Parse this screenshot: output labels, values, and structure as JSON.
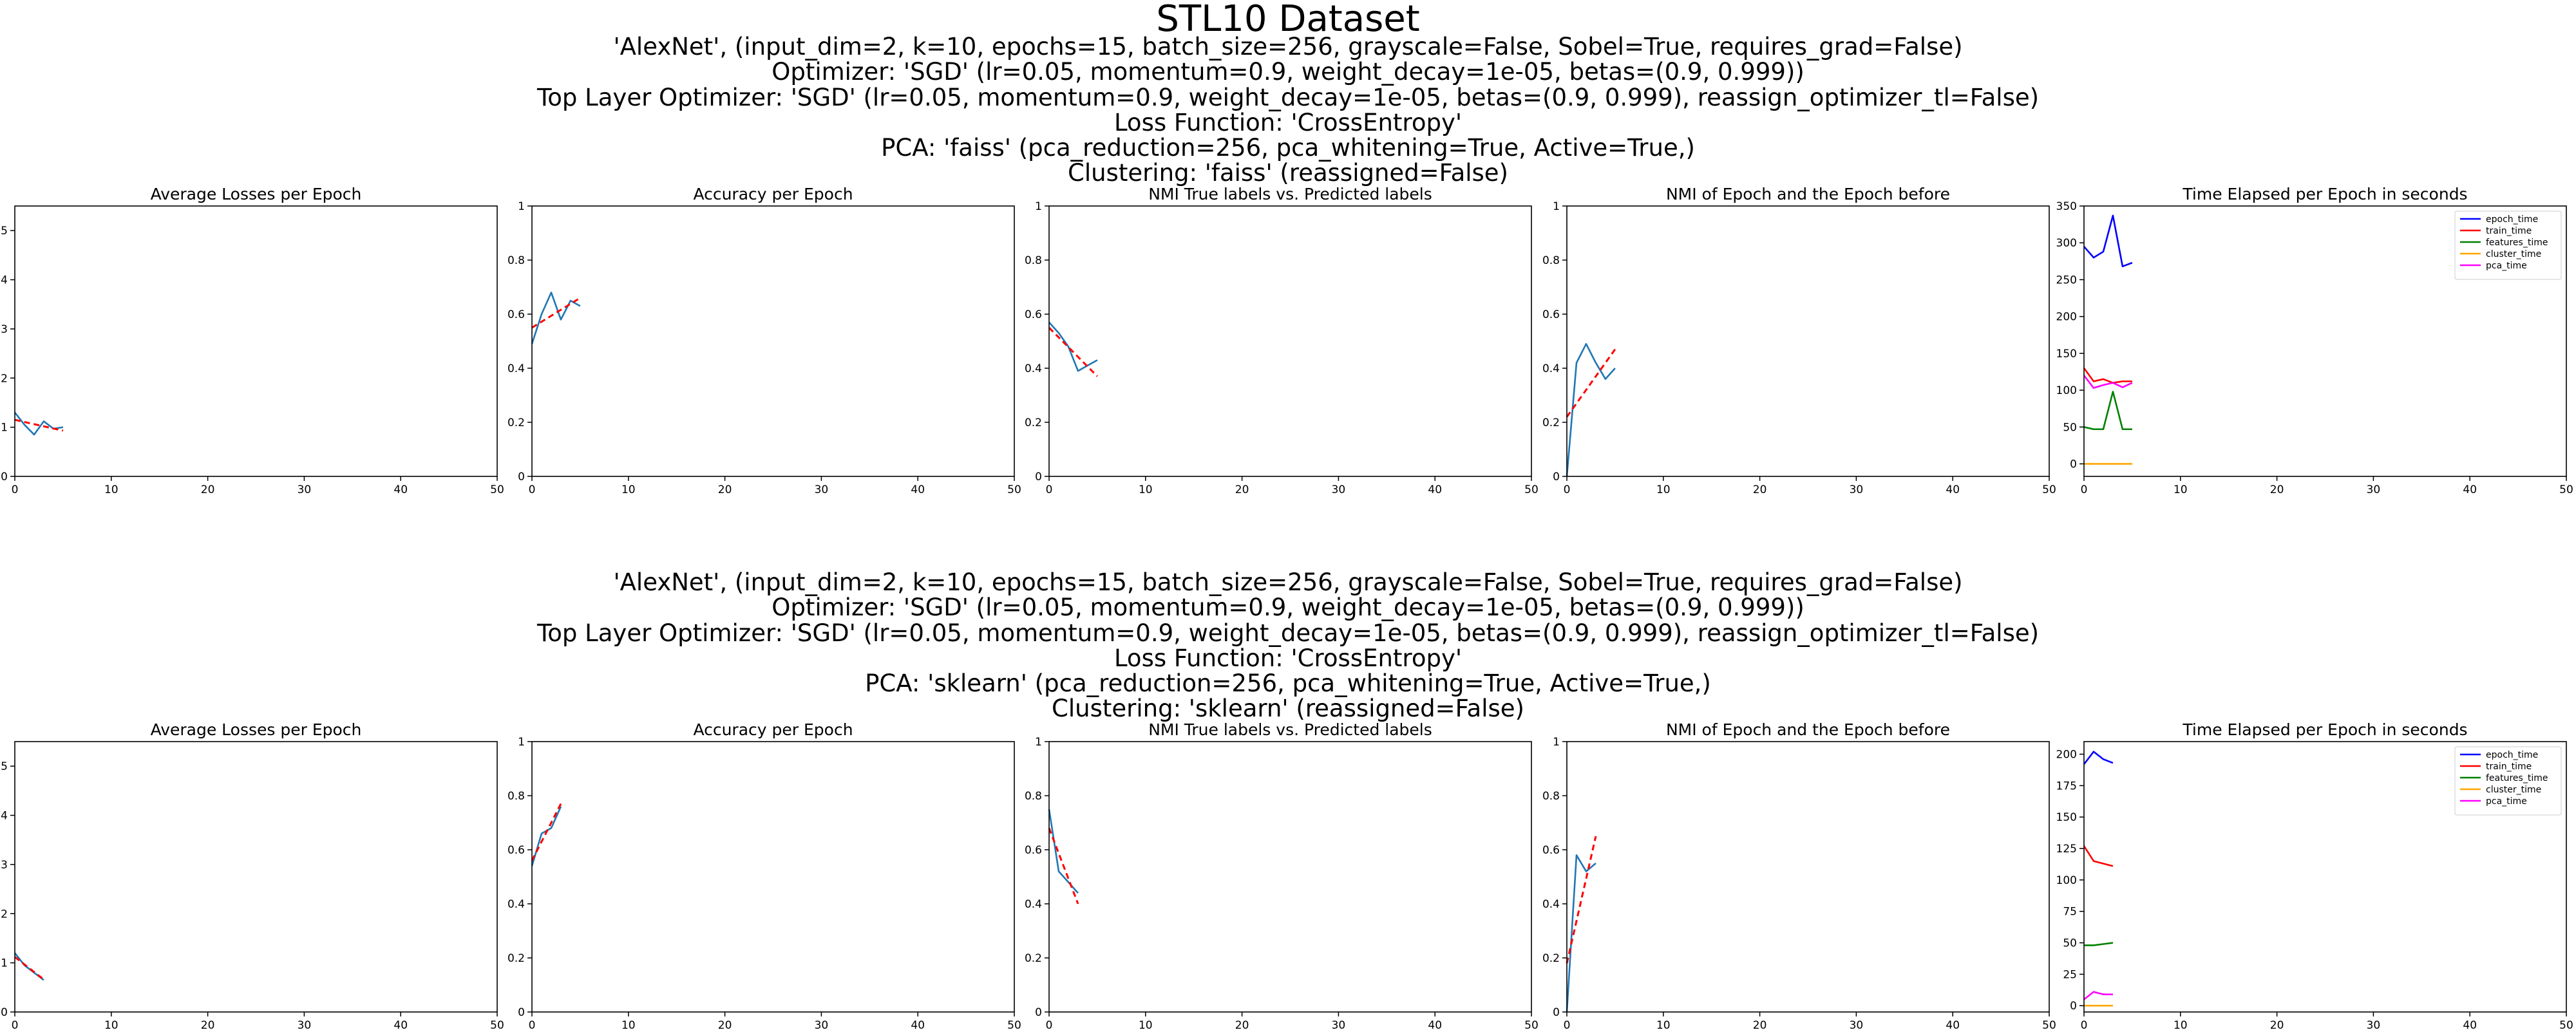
{
  "figure": {
    "title": "STL10 Dataset",
    "rows": [
      {
        "header": [
          "'AlexNet', (input_dim=2, k=10, epochs=15, batch_size=256, grayscale=False, Sobel=True, requires_grad=False)",
          "Optimizer: 'SGD' (lr=0.05, momentum=0.9, weight_decay=1e-05, betas=(0.9, 0.999))",
          "Top Layer Optimizer: 'SGD' (lr=0.05, momentum=0.9, weight_decay=1e-05, betas=(0.9, 0.999), reassign_optimizer_tl=False)",
          "Loss Function: 'CrossEntropy'",
          "PCA: 'faiss' (pca_reduction=256, pca_whitening=True, Active=True,)",
          "Clustering: 'faiss' (reassigned=False)"
        ]
      },
      {
        "header": [
          "'AlexNet', (input_dim=2, k=10, epochs=15, batch_size=256, grayscale=False, Sobel=True, requires_grad=False)",
          "Optimizer: 'SGD' (lr=0.05, momentum=0.9, weight_decay=1e-05, betas=(0.9, 0.999))",
          "Top Layer Optimizer: 'SGD' (lr=0.05, momentum=0.9, weight_decay=1e-05, betas=(0.9, 0.999), reassign_optimizer_tl=False)",
          "Loss Function: 'CrossEntropy'",
          "PCA: 'sklearn' (pca_reduction=256, pca_whitening=True, Active=True,)",
          "Clustering: 'sklearn' (reassigned=False)"
        ]
      }
    ]
  },
  "colors": {
    "metric": "#1f77b4",
    "trend": "#ff0000",
    "epoch_time": "#0000ff",
    "train_time": "#ff0000",
    "features_time": "#008000",
    "cluster_time": "#ffa500",
    "pca_time": "#ff00ff"
  },
  "chart_data": [
    {
      "row": 0,
      "type": "line",
      "title": "Average Losses per Epoch",
      "xlim": [
        0,
        50
      ],
      "ylim": [
        0,
        5.5
      ],
      "xticks": [
        0,
        10,
        20,
        30,
        40,
        50
      ],
      "yticks": [
        0,
        1,
        2,
        3,
        4,
        5
      ],
      "series": [
        {
          "x": [
            0,
            1,
            2,
            3,
            4,
            5
          ],
          "values": [
            1.3,
            1.05,
            0.85,
            1.12,
            0.97,
            1.0
          ],
          "color": "metric",
          "style": "solid"
        },
        {
          "x": [
            0,
            5
          ],
          "values": [
            1.15,
            0.93
          ],
          "color": "trend",
          "style": "dashed"
        }
      ]
    },
    {
      "row": 0,
      "type": "line",
      "title": "Accuracy per Epoch",
      "xlim": [
        0,
        50
      ],
      "ylim": [
        0,
        1.0
      ],
      "xticks": [
        0,
        10,
        20,
        30,
        40,
        50
      ],
      "yticks": [
        0.0,
        0.2,
        0.4,
        0.6,
        0.8,
        1.0
      ],
      "series": [
        {
          "x": [
            0,
            1,
            2,
            3,
            4,
            5
          ],
          "values": [
            0.49,
            0.6,
            0.68,
            0.58,
            0.65,
            0.63
          ],
          "color": "metric",
          "style": "solid"
        },
        {
          "x": [
            0,
            5
          ],
          "values": [
            0.55,
            0.66
          ],
          "color": "trend",
          "style": "dashed"
        }
      ]
    },
    {
      "row": 0,
      "type": "line",
      "title": "NMI True labels vs. Predicted labels",
      "xlim": [
        0,
        50
      ],
      "ylim": [
        0,
        1.0
      ],
      "xticks": [
        0,
        10,
        20,
        30,
        40,
        50
      ],
      "yticks": [
        0.0,
        0.2,
        0.4,
        0.6,
        0.8,
        1.0
      ],
      "series": [
        {
          "x": [
            0,
            1,
            2,
            3,
            4,
            5
          ],
          "values": [
            0.57,
            0.53,
            0.48,
            0.39,
            0.41,
            0.43
          ],
          "color": "metric",
          "style": "solid"
        },
        {
          "x": [
            0,
            5
          ],
          "values": [
            0.55,
            0.37
          ],
          "color": "trend",
          "style": "dashed"
        }
      ]
    },
    {
      "row": 0,
      "type": "line",
      "title": "NMI of Epoch and the Epoch before",
      "xlim": [
        0,
        50
      ],
      "ylim": [
        0,
        1.0
      ],
      "xticks": [
        0,
        10,
        20,
        30,
        40,
        50
      ],
      "yticks": [
        0.0,
        0.2,
        0.4,
        0.6,
        0.8,
        1.0
      ],
      "series": [
        {
          "x": [
            0,
            1,
            2,
            3,
            4,
            5
          ],
          "values": [
            0.0,
            0.42,
            0.49,
            0.42,
            0.36,
            0.4
          ],
          "color": "metric",
          "style": "solid"
        },
        {
          "x": [
            0,
            5
          ],
          "values": [
            0.22,
            0.47
          ],
          "color": "trend",
          "style": "dashed"
        }
      ]
    },
    {
      "row": 0,
      "type": "line",
      "title": "Time Elapsed per Epoch in seconds",
      "xlim": [
        0,
        50
      ],
      "ylim": [
        -17,
        350
      ],
      "xticks": [
        0,
        10,
        20,
        30,
        40,
        50
      ],
      "yticks": [
        0,
        50,
        100,
        150,
        200,
        250,
        300,
        350
      ],
      "legend": "top-right",
      "series": [
        {
          "name": "epoch_time",
          "x": [
            0,
            1,
            2,
            3,
            4,
            5
          ],
          "values": [
            295,
            280,
            288,
            337,
            268,
            273
          ],
          "color": "epoch_time",
          "style": "solid"
        },
        {
          "name": "train_time",
          "x": [
            0,
            1,
            2,
            3,
            4,
            5
          ],
          "values": [
            130,
            112,
            115,
            110,
            112,
            112
          ],
          "color": "train_time",
          "style": "solid"
        },
        {
          "name": "features_time",
          "x": [
            0,
            1,
            2,
            3,
            4,
            5
          ],
          "values": [
            50,
            47,
            47,
            98,
            47,
            47
          ],
          "color": "features_time",
          "style": "solid"
        },
        {
          "name": "cluster_time",
          "x": [
            0,
            1,
            2,
            3,
            4,
            5
          ],
          "values": [
            0,
            0,
            0,
            0,
            0,
            0
          ],
          "color": "cluster_time",
          "style": "solid"
        },
        {
          "name": "pca_time",
          "x": [
            0,
            1,
            2,
            3,
            4,
            5
          ],
          "values": [
            120,
            103,
            107,
            110,
            104,
            110
          ],
          "color": "pca_time",
          "style": "solid"
        }
      ]
    },
    {
      "row": 1,
      "type": "line",
      "title": "Average Losses per Epoch",
      "xlim": [
        0,
        50
      ],
      "ylim": [
        0,
        5.5
      ],
      "xticks": [
        0,
        10,
        20,
        30,
        40,
        50
      ],
      "yticks": [
        0,
        1,
        2,
        3,
        4,
        5
      ],
      "series": [
        {
          "x": [
            0,
            1,
            2,
            3
          ],
          "values": [
            1.2,
            0.95,
            0.8,
            0.65
          ],
          "color": "metric",
          "style": "solid"
        },
        {
          "x": [
            0,
            3
          ],
          "values": [
            1.12,
            0.66
          ],
          "color": "trend",
          "style": "dashed"
        }
      ]
    },
    {
      "row": 1,
      "type": "line",
      "title": "Accuracy per Epoch",
      "xlim": [
        0,
        50
      ],
      "ylim": [
        0,
        1.0
      ],
      "xticks": [
        0,
        10,
        20,
        30,
        40,
        50
      ],
      "yticks": [
        0.0,
        0.2,
        0.4,
        0.6,
        0.8,
        1.0
      ],
      "series": [
        {
          "x": [
            0,
            1,
            2,
            3
          ],
          "values": [
            0.54,
            0.66,
            0.68,
            0.76
          ],
          "color": "metric",
          "style": "solid"
        },
        {
          "x": [
            0,
            3
          ],
          "values": [
            0.56,
            0.77
          ],
          "color": "trend",
          "style": "dashed"
        }
      ]
    },
    {
      "row": 1,
      "type": "line",
      "title": "NMI True labels vs. Predicted labels",
      "xlim": [
        0,
        50
      ],
      "ylim": [
        0,
        1.0
      ],
      "xticks": [
        0,
        10,
        20,
        30,
        40,
        50
      ],
      "yticks": [
        0.0,
        0.2,
        0.4,
        0.6,
        0.8,
        1.0
      ],
      "series": [
        {
          "x": [
            0,
            1,
            2,
            3
          ],
          "values": [
            0.75,
            0.52,
            0.48,
            0.44
          ],
          "color": "metric",
          "style": "solid"
        },
        {
          "x": [
            0,
            3
          ],
          "values": [
            0.68,
            0.4
          ],
          "color": "trend",
          "style": "dashed"
        }
      ]
    },
    {
      "row": 1,
      "type": "line",
      "title": "NMI of Epoch and the Epoch before",
      "xlim": [
        0,
        50
      ],
      "ylim": [
        0,
        1.0
      ],
      "xticks": [
        0,
        10,
        20,
        30,
        40,
        50
      ],
      "yticks": [
        0.0,
        0.2,
        0.4,
        0.6,
        0.8,
        1.0
      ],
      "series": [
        {
          "x": [
            0,
            1,
            2,
            3
          ],
          "values": [
            0.0,
            0.58,
            0.52,
            0.55
          ],
          "color": "metric",
          "style": "solid"
        },
        {
          "x": [
            0,
            3
          ],
          "values": [
            0.18,
            0.65
          ],
          "color": "trend",
          "style": "dashed"
        }
      ]
    },
    {
      "row": 1,
      "type": "line",
      "title": "Time Elapsed per Epoch in seconds",
      "xlim": [
        0,
        50
      ],
      "ylim": [
        -5,
        210
      ],
      "xticks": [
        0,
        10,
        20,
        30,
        40,
        50
      ],
      "yticks": [
        0,
        25,
        50,
        75,
        100,
        125,
        150,
        175,
        200
      ],
      "legend": "top-right",
      "series": [
        {
          "name": "epoch_time",
          "x": [
            0,
            1,
            2,
            3
          ],
          "values": [
            192,
            202,
            196,
            193
          ],
          "color": "epoch_time",
          "style": "solid"
        },
        {
          "name": "train_time",
          "x": [
            0,
            1,
            2,
            3
          ],
          "values": [
            127,
            115,
            113,
            111
          ],
          "color": "train_time",
          "style": "solid"
        },
        {
          "name": "features_time",
          "x": [
            0,
            1,
            2,
            3
          ],
          "values": [
            48,
            48,
            49,
            50
          ],
          "color": "features_time",
          "style": "solid"
        },
        {
          "name": "cluster_time",
          "x": [
            0,
            1,
            2,
            3
          ],
          "values": [
            0,
            0,
            0,
            0
          ],
          "color": "cluster_time",
          "style": "solid"
        },
        {
          "name": "pca_time",
          "x": [
            0,
            1,
            2,
            3
          ],
          "values": [
            5,
            11,
            9,
            9
          ],
          "color": "pca_time",
          "style": "solid"
        }
      ]
    }
  ]
}
